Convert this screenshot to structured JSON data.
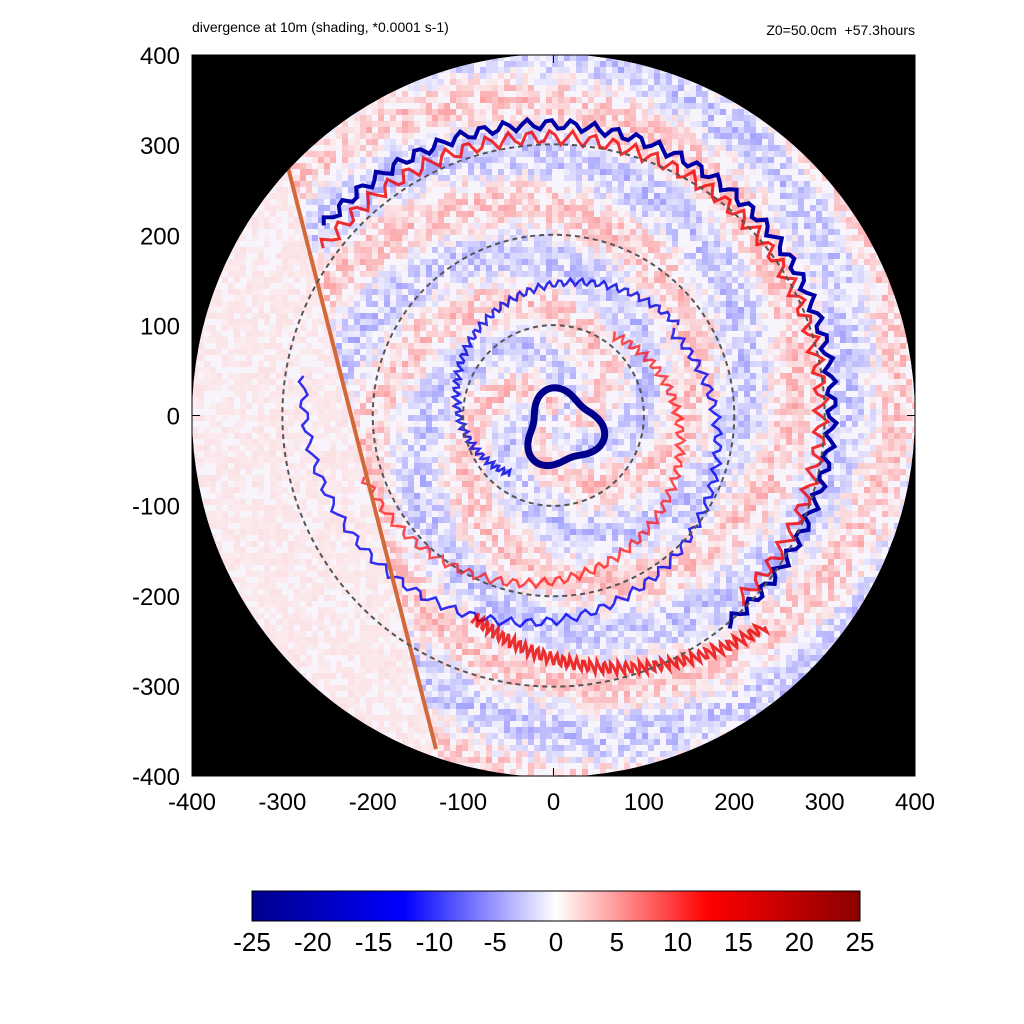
{
  "header": {
    "title": "divergence at 10m (shading, *0.0001 s-1)",
    "info": "Z0=50.0cm  +57.3hours"
  },
  "chart_data": {
    "type": "heatmap",
    "title": "divergence at 10m (shading, *0.0001 s-1)",
    "subtitle": "Z0=50.0cm  +57.3hours",
    "xlabel": "",
    "ylabel": "",
    "xlim": [
      -400,
      400
    ],
    "ylim": [
      -400,
      400
    ],
    "x_ticks": [
      -400,
      -300,
      -200,
      -100,
      0,
      100,
      200,
      300,
      400
    ],
    "y_ticks": [
      -400,
      -300,
      -200,
      -100,
      0,
      100,
      200,
      300,
      400
    ],
    "domain_radius": 400,
    "range_rings": [
      100,
      200,
      300
    ],
    "background_outside_domain": "#000000",
    "colorbar": {
      "ticks": [
        -25,
        -20,
        -15,
        -10,
        -5,
        0,
        5,
        10,
        15,
        20,
        25
      ],
      "range": [
        -25,
        25
      ],
      "colors": [
        "#00008b",
        "#0000ff",
        "#ffffff",
        "#ff0000",
        "#8b0000"
      ]
    },
    "features": {
      "eyewall_convergence_ring_radius": 40,
      "eyewall_center": [
        10,
        -15
      ],
      "outer_convergence_band_radius": 330,
      "secondary_band_radius": 210,
      "straight_front": {
        "from": [
          -300,
          300
        ],
        "to": [
          -130,
          -370
        ],
        "sign": "positive"
      }
    }
  }
}
